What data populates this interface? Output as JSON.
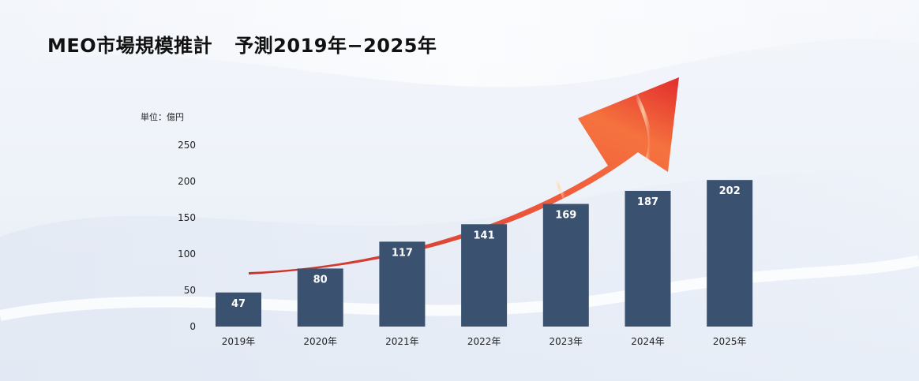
{
  "chart_data": {
    "type": "bar",
    "title": "MEO市場規模推計",
    "subtitle": "予測2019年−2025年",
    "unit_label": "単位：億円",
    "categories": [
      "2019年",
      "2020年",
      "2021年",
      "2022年",
      "2023年",
      "2024年",
      "2025年"
    ],
    "values": [
      47,
      80,
      117,
      141,
      169,
      187,
      202
    ],
    "ylim": [
      0,
      250
    ],
    "yticks": [
      0,
      50,
      100,
      150,
      200,
      250
    ],
    "grid": false,
    "legend": "none",
    "bar_color": "#3a5270",
    "value_label_color": "#ffffff",
    "decoration": "red-trend-arrow",
    "arrow_color": "#e8413a"
  }
}
